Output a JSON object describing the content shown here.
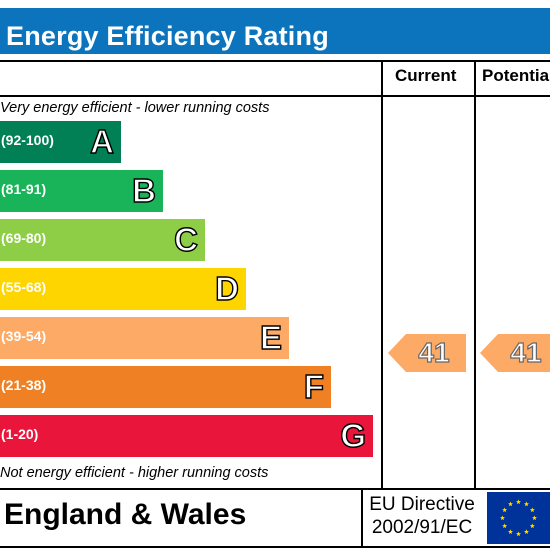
{
  "title": "Energy Efficiency Rating",
  "columns": {
    "current": "Current",
    "potential": "Potential"
  },
  "notes": {
    "top": "Very energy efficient - lower running costs",
    "bottom": "Not energy efficient - higher running costs"
  },
  "bands": [
    {
      "range": "(92-100)",
      "letter": "A",
      "color": "#008054"
    },
    {
      "range": "(81-91)",
      "letter": "B",
      "color": "#19b459"
    },
    {
      "range": "(69-80)",
      "letter": "C",
      "color": "#8dce46"
    },
    {
      "range": "(55-68)",
      "letter": "D",
      "color": "#ffd500"
    },
    {
      "range": "(39-54)",
      "letter": "E",
      "color": "#fcaa65"
    },
    {
      "range": "(21-38)",
      "letter": "F",
      "color": "#ef8023"
    },
    {
      "range": "(1-20)",
      "letter": "G",
      "color": "#e9153b"
    }
  ],
  "ratings": {
    "current": {
      "value": "41",
      "band": "E",
      "color": "#fcaa65"
    },
    "potential": {
      "value": "41",
      "band": "E",
      "color": "#fcaa65"
    }
  },
  "footer": {
    "country": "England & Wales",
    "directive_line1": "EU Directive",
    "directive_line2": "2002/91/EC"
  },
  "colors": {
    "title_bar": "#0c74bd",
    "eu_flag": "#003399",
    "eu_stars": "#ffdd00"
  }
}
